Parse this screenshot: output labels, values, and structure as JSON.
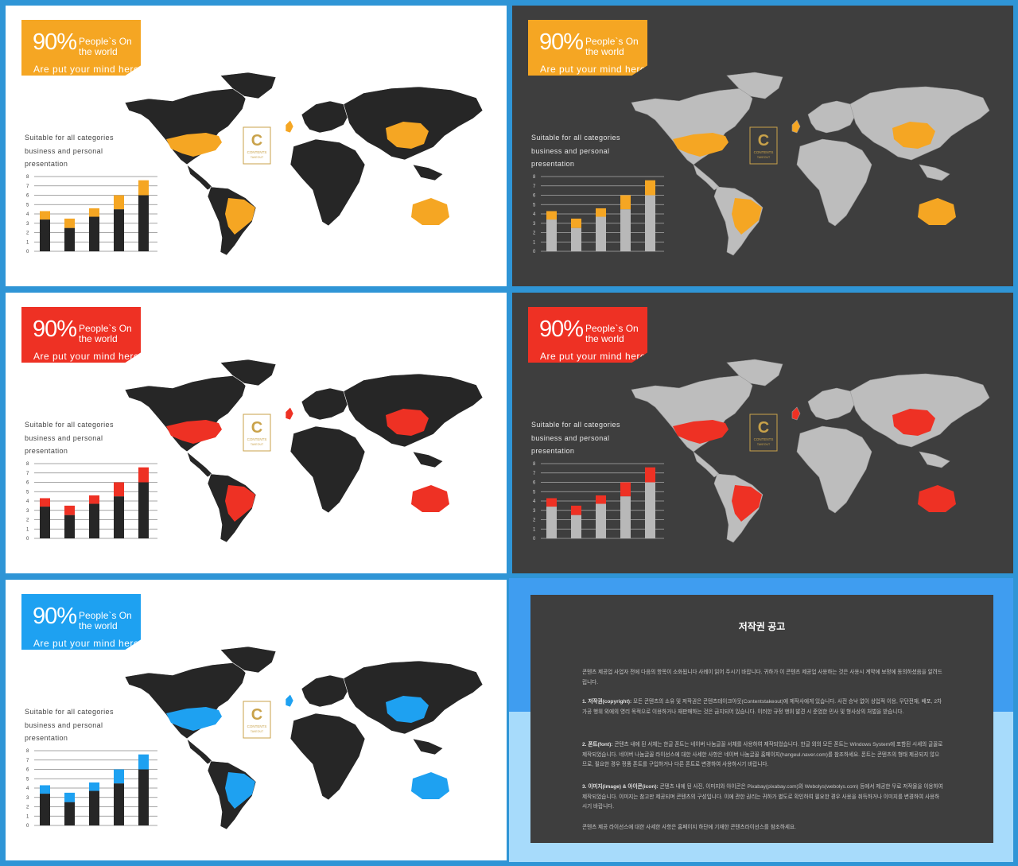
{
  "slides": [
    {
      "theme": "light",
      "accent": "#f5a623"
    },
    {
      "theme": "dark",
      "accent": "#f5a623"
    },
    {
      "theme": "light",
      "accent": "#ee3124"
    },
    {
      "theme": "dark",
      "accent": "#ee3124"
    },
    {
      "theme": "light",
      "accent": "#1ea1f1"
    }
  ],
  "header": {
    "percent": "90%",
    "line1": "People`s On",
    "line2": "the world",
    "line3": "Are put your mind here"
  },
  "description": [
    "Suitable for all categories",
    "business and personal",
    "presentation"
  ],
  "logo_text": [
    "CONTENTS",
    "TAKEOUT"
  ],
  "chart_data": {
    "type": "bar",
    "stacked": true,
    "categories": [
      "1",
      "2",
      "3",
      "4",
      "5"
    ],
    "series": [
      {
        "values": [
          3.4,
          2.5,
          3.7,
          4.5,
          6.0
        ]
      },
      {
        "values": [
          0.9,
          1.0,
          0.9,
          1.5,
          1.6
        ]
      }
    ],
    "ylim": [
      0,
      8
    ],
    "yticks": [
      "0",
      "1",
      "2",
      "3",
      "4",
      "5",
      "6",
      "7",
      "8"
    ],
    "grid": true
  },
  "colors": {
    "map_light": "#262626",
    "map_dark": "#bdbdbd",
    "bar_light": "#262626",
    "bar_dark": "#b8b8b8"
  },
  "notice": {
    "title": "저작권 공고",
    "intro": "콘텐츠 제공업 사업자 전에 다음의 항목이 소화됩니다 사례이 읽어 주시기 바랍니다. 귀하가 이 콘텐츠 제공업 사용하는 것은 사용시 계약에 보정에 동의하셨음을 알려드립니다.",
    "p1_head": "1. 저작권(copyright):",
    "p1": " 모든 콘텐츠의 소유 및 저작권은 콘텐츠테이크아웃(Contentstakeout)에 제작사에게 있습니다. 사전 승낙 없이 상업적 이용, 무단전재, 배포, 2차 가공 행위 외에의 영리 목적으로 이용하거나 재판매하는 것은 금지되어 있습니다. 이러한 규정 행위 발견 시 준엄한 민사 및 형사상의 처벌을 받습니다.",
    "p2_head": "2. 폰트(font):",
    "p2": " 콘텐츠 내에 된 서체는 한글 폰트는 네이버 나눔글꼴 서체를 사용하여 제작되었습니다. 한글 외의 모든 폰트는 Windows System에 포함된 시세의 글꼴로 제작되었습니다. 네이버 나눔글꼴 라이선스에 대한 사세한 사항은 네이버 나눔글꼴 홈페이지(hangeul.naver.com)를 참조하세요. 폰트는 콘텐츠의 형태 제공되지 않으므로, 필요한 경우 정품 폰트를 구입하거나 다른 폰트로 변경하여 사용하시기 바랍니다.",
    "p3_head": "3. 이미지(image) & 아이콘(icon):",
    "p3": " 콘텐츠 내에 된 사진, 이미지와 아이콘은 Pixabay(pixabay.com)와 Webolys(webolys.com) 등에서 제공한 무료 저작물을 이용하여 제작되었습니다. 이미지는 참고만 제공되며 콘텐츠의 구성입니다. 이에 관한 권리는 귀하가 별도로 확인하여 필요한 경우 사용을 취득하거나 이미지를 변경하여 사용하시기 바랍니다.",
    "outro": "콘텐츠 제공 라이선스에 대한 사세한 사항은 홈페이지 하단에 기재한 콘텐츠라이선스를 참조하세요."
  }
}
